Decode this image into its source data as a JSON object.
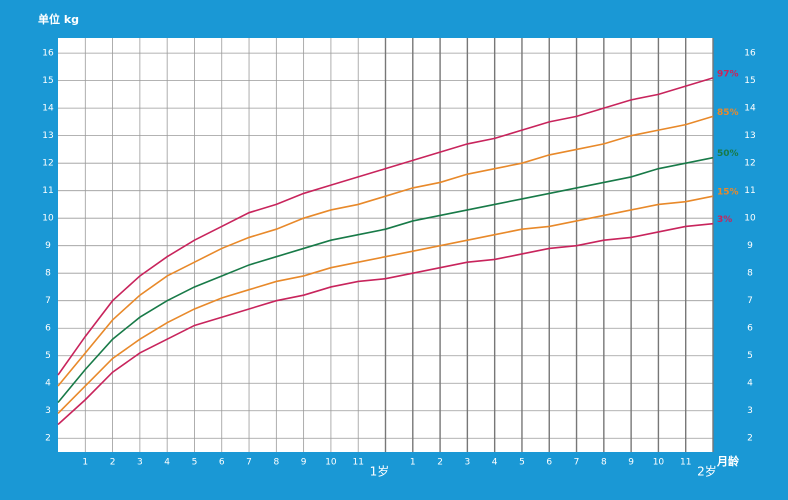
{
  "chart_data": {
    "type": "line",
    "y_label": "单位 kg",
    "x_label": "月龄",
    "x": [
      0,
      1,
      2,
      3,
      4,
      5,
      6,
      7,
      8,
      9,
      10,
      11,
      12,
      13,
      14,
      15,
      16,
      17,
      18,
      19,
      20,
      21,
      22,
      23,
      24
    ],
    "xlim": [
      0,
      24
    ],
    "xticks": [
      1,
      2,
      3,
      4,
      5,
      6,
      7,
      8,
      9,
      10,
      11,
      {
        "value": 12,
        "label": "1岁"
      },
      {
        "value": 13,
        "label": "1"
      },
      {
        "value": 14,
        "label": "2"
      },
      {
        "value": 15,
        "label": "3"
      },
      {
        "value": 16,
        "label": "4"
      },
      {
        "value": 17,
        "label": "5"
      },
      {
        "value": 18,
        "label": "6"
      },
      {
        "value": 19,
        "label": "7"
      },
      {
        "value": 20,
        "label": "8"
      },
      {
        "value": 21,
        "label": "9"
      },
      {
        "value": 22,
        "label": "10"
      },
      {
        "value": 23,
        "label": "11"
      },
      {
        "value": 24,
        "label": "2岁"
      }
    ],
    "ylim": [
      1.5,
      16.55
    ],
    "yticks": [
      2,
      3,
      4,
      5,
      6,
      7,
      8,
      9,
      10,
      11,
      12,
      13,
      14,
      15,
      16
    ],
    "grid": true,
    "series": [
      {
        "name": "97%",
        "color": "#c8245c",
        "values": [
          4.3,
          5.7,
          7.0,
          7.9,
          8.6,
          9.2,
          9.7,
          10.2,
          10.5,
          10.9,
          11.2,
          11.5,
          11.8,
          12.1,
          12.4,
          12.7,
          12.9,
          13.2,
          13.5,
          13.7,
          14.0,
          14.3,
          14.5,
          14.8,
          15.1
        ]
      },
      {
        "name": "85%",
        "color": "#e8892a",
        "values": [
          3.9,
          5.1,
          6.3,
          7.2,
          7.9,
          8.4,
          8.9,
          9.3,
          9.6,
          10.0,
          10.3,
          10.5,
          10.8,
          11.1,
          11.3,
          11.6,
          11.8,
          12.0,
          12.3,
          12.5,
          12.7,
          13.0,
          13.2,
          13.4,
          13.7
        ]
      },
      {
        "name": "50%",
        "color": "#187a48",
        "values": [
          3.3,
          4.5,
          5.6,
          6.4,
          7.0,
          7.5,
          7.9,
          8.3,
          8.6,
          8.9,
          9.2,
          9.4,
          9.6,
          9.9,
          10.1,
          10.3,
          10.5,
          10.7,
          10.9,
          11.1,
          11.3,
          11.5,
          11.8,
          12.0,
          12.2
        ]
      },
      {
        "name": "15%",
        "color": "#e8892a",
        "values": [
          2.9,
          3.9,
          4.9,
          5.6,
          6.2,
          6.7,
          7.1,
          7.4,
          7.7,
          7.9,
          8.2,
          8.4,
          8.6,
          8.8,
          9.0,
          9.2,
          9.4,
          9.6,
          9.7,
          9.9,
          10.1,
          10.3,
          10.5,
          10.6,
          10.8
        ]
      },
      {
        "name": "3%",
        "color": "#c8245c",
        "values": [
          2.5,
          3.4,
          4.4,
          5.1,
          5.6,
          6.1,
          6.4,
          6.7,
          7.0,
          7.2,
          7.5,
          7.7,
          7.8,
          8.0,
          8.2,
          8.4,
          8.5,
          8.7,
          8.9,
          9.0,
          9.2,
          9.3,
          9.5,
          9.7,
          9.8
        ]
      }
    ]
  }
}
